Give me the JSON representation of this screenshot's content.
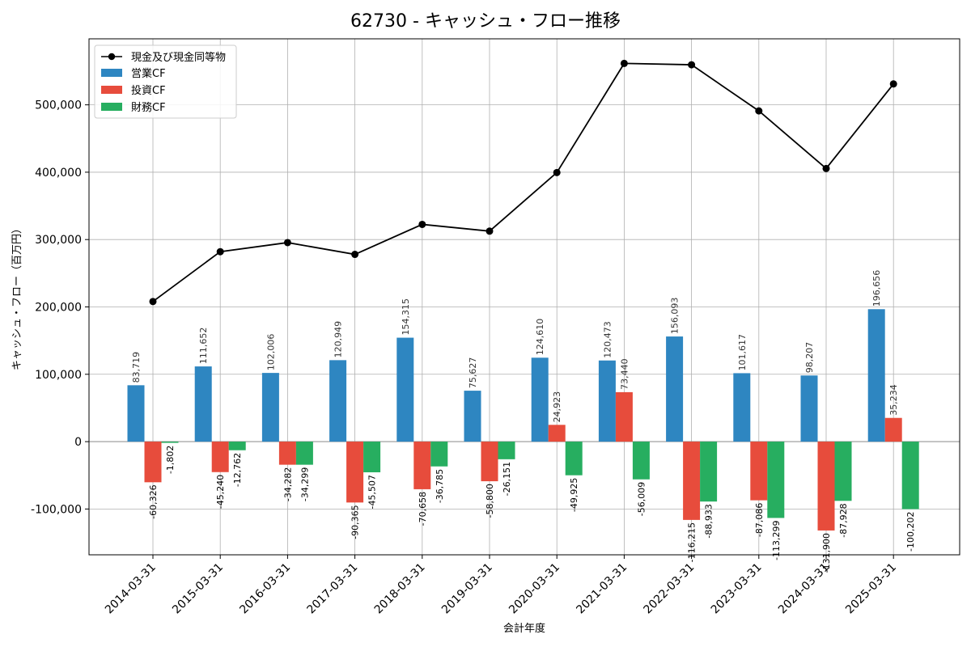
{
  "chart_data": {
    "type": "bar",
    "title": "62730 - キャッシュ・フロー推移",
    "xlabel": "会計年度",
    "ylabel": "キャッシュ・フロー（百万円）",
    "categories": [
      "2014-03-31",
      "2015-03-31",
      "2016-03-31",
      "2017-03-31",
      "2018-03-31",
      "2019-03-31",
      "2020-03-31",
      "2021-03-31",
      "2022-03-31",
      "2023-03-31",
      "2024-03-31",
      "2025-03-31"
    ],
    "series": [
      {
        "name": "営業CF",
        "color": "#2e86c1",
        "values": [
          83719,
          111652,
          102006,
          120949,
          154315,
          75627,
          124610,
          120473,
          156093,
          101617,
          98207,
          196656
        ]
      },
      {
        "name": "投資CF",
        "color": "#e74c3c",
        "values": [
          -60326,
          -45240,
          -34282,
          -90365,
          -70658,
          -58800,
          24923,
          73440,
          -116215,
          -87086,
          -131900,
          35234
        ]
      },
      {
        "name": "財務CF",
        "color": "#27ae60",
        "values": [
          -1802,
          -12762,
          -34299,
          -45507,
          -36785,
          -26151,
          -49925,
          -56009,
          -88933,
          -113299,
          -87928,
          -100202
        ]
      }
    ],
    "line_series": {
      "name": "現金及び現金同等物",
      "color": "#000000",
      "values": [
        208000,
        282000,
        295500,
        278000,
        322500,
        312500,
        399500,
        561500,
        559500,
        491000,
        405500,
        531000
      ]
    },
    "yticks": [
      -100000,
      0,
      100000,
      200000,
      300000,
      400000,
      500000
    ],
    "ytick_labels": [
      "-100,000",
      "0",
      "100,000",
      "200,000",
      "300,000",
      "400,000",
      "500,000"
    ],
    "ylim": [
      -168000,
      598000
    ],
    "grid": true,
    "legend_position": "top-left"
  }
}
